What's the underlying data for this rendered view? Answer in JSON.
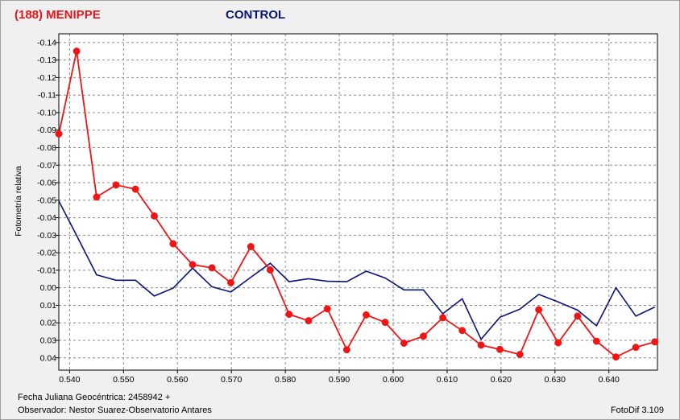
{
  "header": {
    "target_label": "(188) MENIPPE",
    "control_label": "CONTROL"
  },
  "footer": {
    "date_label": "Fecha Juliana Geocéntrica: 2458942 +",
    "observer_label": "Observador: Nestor Suarez-Observatorio Antares",
    "software_label": "FotoDif 3.109"
  },
  "colors": {
    "target": "#f01414",
    "control": "#0a1478",
    "grid": "#8c8c8c"
  },
  "chart_data": {
    "type": "line",
    "title": "",
    "xlabel": "",
    "ylabel": "Fotometría relativa",
    "xlim": [
      0.538,
      0.649
    ],
    "ylim": [
      0.047,
      -0.145
    ],
    "y_inverted": true,
    "grid": true,
    "x_ticks": [
      "0.540",
      "0.550",
      "0.560",
      "0.570",
      "0.580",
      "0.590",
      "0.600",
      "0.610",
      "0.620",
      "0.630",
      "0.640"
    ],
    "x_tick_values": [
      0.54,
      0.55,
      0.56,
      0.57,
      0.58,
      0.59,
      0.6,
      0.61,
      0.62,
      0.63,
      0.64
    ],
    "y_ticks": [
      "-0.14",
      "-0.13",
      "-0.12",
      "-0.11",
      "-0.10",
      "-0.09",
      "-0.08",
      "-0.07",
      "-0.06",
      "-0.05",
      "-0.04",
      "-0.03",
      "-0.02",
      "-0.01",
      "0.00",
      "0.01",
      "0.02",
      "0.03",
      "0.04"
    ],
    "y_tick_values": [
      -0.14,
      -0.13,
      -0.12,
      -0.11,
      -0.1,
      -0.09,
      -0.08,
      -0.07,
      -0.06,
      -0.05,
      -0.04,
      -0.03,
      -0.02,
      -0.01,
      0.0,
      0.01,
      0.02,
      0.03,
      0.04
    ],
    "series": [
      {
        "name": "(188) MENIPPE",
        "markers": true,
        "x": [
          0.538,
          0.5413,
          0.545,
          0.5486,
          0.5522,
          0.5557,
          0.5592,
          0.5628,
          0.5664,
          0.5699,
          0.5736,
          0.5772,
          0.5807,
          0.5843,
          0.5878,
          0.5914,
          0.595,
          0.5985,
          0.602,
          0.6056,
          0.6092,
          0.6128,
          0.6163,
          0.6198,
          0.6235,
          0.627,
          0.6306,
          0.6342,
          0.6377,
          0.6413,
          0.645,
          0.6485
        ],
        "y": [
          -0.0878,
          -0.1351,
          -0.0518,
          -0.0587,
          -0.0563,
          -0.041,
          -0.0251,
          -0.0132,
          -0.0114,
          -0.0029,
          -0.0235,
          -0.0102,
          0.0151,
          0.0188,
          0.012,
          0.0354,
          0.0155,
          0.0197,
          0.0316,
          0.0276,
          0.0171,
          0.0244,
          0.0327,
          0.0352,
          0.0381,
          0.0125,
          0.0314,
          0.0162,
          0.0305,
          0.0395,
          0.034,
          0.0309
        ]
      },
      {
        "name": "CONTROL",
        "markers": false,
        "x": [
          0.538,
          0.5413,
          0.545,
          0.5486,
          0.5522,
          0.5557,
          0.5592,
          0.5628,
          0.5664,
          0.5699,
          0.5736,
          0.5772,
          0.5807,
          0.5843,
          0.5878,
          0.5914,
          0.595,
          0.5985,
          0.602,
          0.6056,
          0.6092,
          0.6128,
          0.6163,
          0.6198,
          0.6235,
          0.627,
          0.6306,
          0.6342,
          0.6377,
          0.6413,
          0.645,
          0.6485
        ],
        "y": [
          -0.0495,
          -0.0299,
          -0.0074,
          -0.0043,
          -0.0043,
          0.0047,
          0.0002,
          -0.0112,
          -0.0006,
          0.0024,
          -0.006,
          -0.014,
          -0.0035,
          -0.0052,
          -0.0037,
          -0.0035,
          -0.0095,
          -0.0056,
          0.0012,
          0.0012,
          0.0148,
          0.0063,
          0.0294,
          0.0168,
          0.0122,
          0.0038,
          0.0081,
          0.0128,
          0.0217,
          0.0,
          0.0162,
          0.011
        ]
      }
    ]
  }
}
